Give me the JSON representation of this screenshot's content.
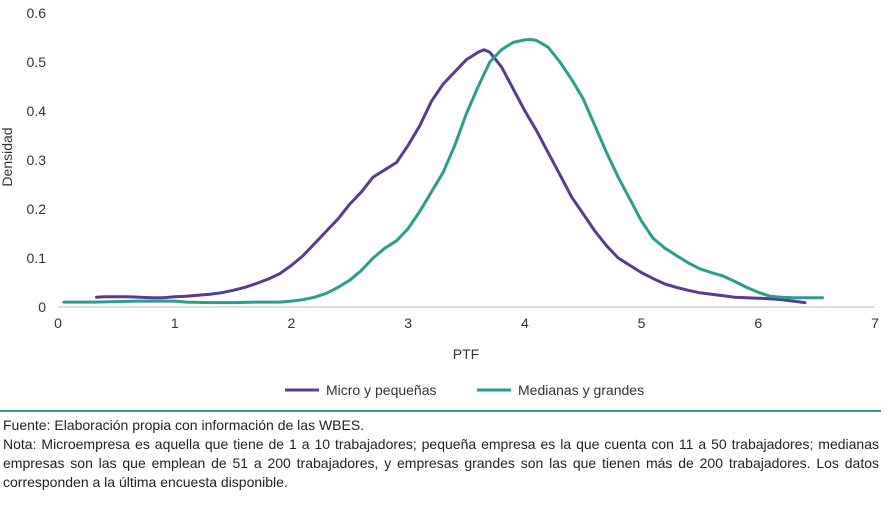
{
  "chart_data": {
    "type": "line",
    "xlabel": "PTF",
    "ylabel": "Densidad",
    "xlim": [
      0,
      7
    ],
    "ylim": [
      0,
      0.6
    ],
    "x_ticks": [
      0,
      1,
      2,
      3,
      4,
      5,
      6,
      7
    ],
    "y_ticks": [
      0,
      0.1,
      0.2,
      0.3,
      0.4,
      0.5,
      0.6
    ],
    "grid": false,
    "legend_position": "bottom",
    "series": [
      {
        "name": "Micro y pequeñas",
        "color": "#5b3b8c",
        "x": [
          0.33,
          0.4,
          0.6,
          0.7,
          0.8,
          0.9,
          1.0,
          1.1,
          1.2,
          1.3,
          1.4,
          1.5,
          1.6,
          1.7,
          1.8,
          1.9,
          2.0,
          2.1,
          2.2,
          2.3,
          2.4,
          2.5,
          2.6,
          2.7,
          2.8,
          2.9,
          3.0,
          3.1,
          3.2,
          3.3,
          3.4,
          3.5,
          3.6,
          3.65,
          3.7,
          3.8,
          3.9,
          4.0,
          4.1,
          4.2,
          4.3,
          4.4,
          4.5,
          4.6,
          4.7,
          4.8,
          4.9,
          5.0,
          5.1,
          5.2,
          5.3,
          5.4,
          5.5,
          5.6,
          5.7,
          5.8,
          5.9,
          6.0,
          6.1,
          6.2,
          6.3,
          6.4
        ],
        "y": [
          0.02,
          0.021,
          0.021,
          0.02,
          0.019,
          0.019,
          0.021,
          0.022,
          0.024,
          0.026,
          0.029,
          0.034,
          0.04,
          0.048,
          0.057,
          0.068,
          0.085,
          0.105,
          0.13,
          0.155,
          0.18,
          0.21,
          0.235,
          0.265,
          0.28,
          0.295,
          0.33,
          0.37,
          0.42,
          0.455,
          0.48,
          0.505,
          0.52,
          0.525,
          0.52,
          0.49,
          0.445,
          0.4,
          0.36,
          0.315,
          0.27,
          0.225,
          0.19,
          0.155,
          0.125,
          0.1,
          0.085,
          0.07,
          0.058,
          0.047,
          0.04,
          0.034,
          0.029,
          0.026,
          0.023,
          0.02,
          0.019,
          0.018,
          0.017,
          0.015,
          0.012,
          0.009
        ]
      },
      {
        "name": "Medianas y grandes",
        "color": "#2a9d8f",
        "x": [
          0.05,
          0.3,
          0.5,
          0.7,
          0.9,
          1.0,
          1.1,
          1.3,
          1.5,
          1.7,
          1.9,
          2.0,
          2.1,
          2.2,
          2.3,
          2.4,
          2.5,
          2.6,
          2.7,
          2.8,
          2.9,
          3.0,
          3.1,
          3.2,
          3.3,
          3.4,
          3.5,
          3.6,
          3.7,
          3.8,
          3.9,
          4.0,
          4.05,
          4.1,
          4.2,
          4.3,
          4.4,
          4.5,
          4.6,
          4.7,
          4.8,
          4.9,
          5.0,
          5.1,
          5.2,
          5.3,
          5.4,
          5.5,
          5.6,
          5.7,
          5.8,
          5.9,
          6.0,
          6.1,
          6.2,
          6.3,
          6.4,
          6.55
        ],
        "y": [
          0.01,
          0.01,
          0.011,
          0.012,
          0.012,
          0.012,
          0.01,
          0.009,
          0.009,
          0.01,
          0.01,
          0.012,
          0.015,
          0.02,
          0.028,
          0.04,
          0.055,
          0.075,
          0.1,
          0.12,
          0.135,
          0.16,
          0.195,
          0.235,
          0.275,
          0.33,
          0.395,
          0.45,
          0.5,
          0.525,
          0.54,
          0.545,
          0.546,
          0.544,
          0.53,
          0.5,
          0.465,
          0.425,
          0.37,
          0.315,
          0.265,
          0.22,
          0.175,
          0.14,
          0.12,
          0.105,
          0.09,
          0.078,
          0.07,
          0.063,
          0.052,
          0.04,
          0.03,
          0.022,
          0.02,
          0.019,
          0.019,
          0.019
        ]
      }
    ]
  },
  "footer": {
    "source": "Fuente: Elaboración propia con información de las WBES.",
    "note": "Nota: Microempresa es aquella que tiene de 1 a 10 trabajadores; pequeña empresa es la que cuenta con 11 a 50 trabajadores; medianas empresas son las que emplean de 51 a 200 trabajadores, y empresas grandes son las que tienen más de 200 trabajadores. Los datos corresponden a la última encuesta disponible."
  }
}
